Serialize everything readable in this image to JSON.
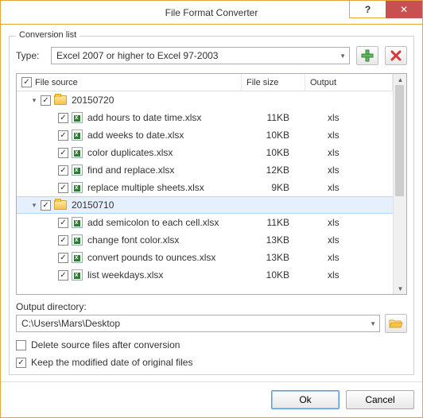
{
  "window": {
    "title": "File Format Converter",
    "help_symbol": "?",
    "close_symbol": "✕"
  },
  "conversion": {
    "group_label": "Conversion list",
    "type_label": "Type:",
    "type_value": "Excel 2007 or higher to Excel 97-2003"
  },
  "columns": {
    "source": "File source",
    "size": "File size",
    "output": "Output"
  },
  "tree": [
    {
      "kind": "folder",
      "name": "20150720",
      "expanded": true,
      "selected": false,
      "indent": 1
    },
    {
      "kind": "file",
      "name": "add hours to date time.xlsx",
      "size": "11KB",
      "output": "xls",
      "indent": 2
    },
    {
      "kind": "file",
      "name": "add weeks to date.xlsx",
      "size": "10KB",
      "output": "xls",
      "indent": 2
    },
    {
      "kind": "file",
      "name": "color duplicates.xlsx",
      "size": "10KB",
      "output": "xls",
      "indent": 2
    },
    {
      "kind": "file",
      "name": "find and replace.xlsx",
      "size": "12KB",
      "output": "xls",
      "indent": 2
    },
    {
      "kind": "file",
      "name": "replace multiple sheets.xlsx",
      "size": "9KB",
      "output": "xls",
      "indent": 2
    },
    {
      "kind": "folder",
      "name": "20150710",
      "expanded": true,
      "selected": true,
      "indent": 1
    },
    {
      "kind": "file",
      "name": "add semicolon to each cell.xlsx",
      "size": "11KB",
      "output": "xls",
      "indent": 2
    },
    {
      "kind": "file",
      "name": "change font color.xlsx",
      "size": "13KB",
      "output": "xls",
      "indent": 2
    },
    {
      "kind": "file",
      "name": "convert pounds to ounces.xlsx",
      "size": "13KB",
      "output": "xls",
      "indent": 2
    },
    {
      "kind": "file",
      "name": "list weekdays.xlsx",
      "size": "10KB",
      "output": "xls",
      "indent": 2
    }
  ],
  "output_dir": {
    "label": "Output directory:",
    "value": "C:\\Users\\Mars\\Desktop"
  },
  "options": {
    "delete_source": {
      "label": "Delete source files after conversion",
      "checked": false
    },
    "keep_date": {
      "label": "Keep the modified date of original files",
      "checked": true
    }
  },
  "buttons": {
    "ok": "Ok",
    "cancel": "Cancel"
  }
}
